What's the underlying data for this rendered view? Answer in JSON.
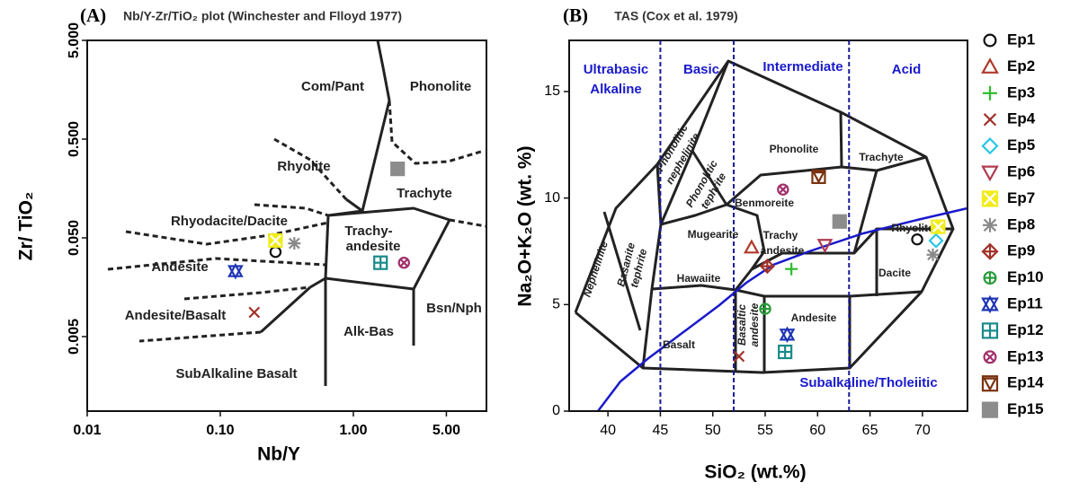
{
  "chart_data": [
    {
      "type": "scatter",
      "panel": "(A)",
      "title": "Nb/Y-Zr/TiO₂ plot (Winchester and Flloyd 1977)",
      "x_label": "Nb/Y",
      "y_label": "Zr/ TiO₂",
      "log_x": true,
      "log_y": true,
      "xlim": [
        0.01,
        10
      ],
      "ylim": [
        0.00088,
        5
      ],
      "xticks": [
        0.01,
        {
          "value": 0.1,
          "label": "0.10"
        },
        {
          "value": 1,
          "label": "1.00"
        },
        {
          "value": 5,
          "label": "5.00"
        }
      ],
      "yticks": [
        {
          "value": 0.005,
          "label": "0.005"
        },
        {
          "value": 0.05,
          "label": "0.050"
        },
        {
          "value": 0.5,
          "label": "0.500"
        },
        {
          "value": 5,
          "label": "5.000"
        }
      ],
      "annotations": [
        {
          "text": "Com/Pant"
        },
        {
          "text": "Phonolite"
        },
        {
          "text": "Rhyolite"
        },
        {
          "text": "Trachyte"
        },
        {
          "text": "Rhyodacite/Dacite"
        },
        {
          "text": "Trachy-"
        },
        {
          "text": "andesite"
        },
        {
          "text": "Andesite"
        },
        {
          "text": "Andesite/Basalt"
        },
        {
          "text": "Alk-Bas"
        },
        {
          "text": "Bsn/Nph"
        },
        {
          "text": "SubAlkaline Basalt"
        }
      ],
      "series": [
        {
          "x": [
            0.26
          ],
          "values": [
            0.036
          ]
        },
        {
          "x": [
            null
          ],
          "values": [
            null
          ]
        },
        {
          "x": [
            null
          ],
          "values": [
            null
          ]
        },
        {
          "x": [
            0.18
          ],
          "values": [
            0.0088
          ]
        },
        {
          "x": [
            null
          ],
          "values": [
            null
          ]
        },
        {
          "x": [
            null
          ],
          "values": [
            null
          ]
        },
        {
          "x": [
            0.26
          ],
          "values": [
            0.047
          ]
        },
        {
          "x": [
            0.36
          ],
          "values": [
            0.044
          ]
        },
        {
          "x": [
            null
          ],
          "values": [
            null
          ]
        },
        {
          "x": [
            null
          ],
          "values": [
            null
          ]
        },
        {
          "x": [
            0.13
          ],
          "values": [
            0.023
          ]
        },
        {
          "x": [
            1.6
          ],
          "values": [
            0.028
          ]
        },
        {
          "x": [
            2.4
          ],
          "values": [
            0.028
          ]
        },
        {
          "x": [
            null
          ],
          "values": [
            null
          ]
        },
        {
          "x": [
            2.15
          ],
          "values": [
            0.25
          ]
        }
      ]
    },
    {
      "type": "scatter",
      "panel": "(B)",
      "title": "TAS (Cox et al. 1979)",
      "x_label": "SiO₂ (wt.%)",
      "y_label": "Na₂O+K₂O (wt. %)",
      "xlim": [
        36.3,
        74.3
      ],
      "ylim": [
        0,
        17.4
      ],
      "xticks": [
        40,
        45,
        50,
        55,
        60,
        65,
        70
      ],
      "yticks": [
        0,
        5,
        10,
        15
      ],
      "vlines": [
        45,
        52,
        63
      ],
      "annotations": [
        {
          "text": "Ultrabasic",
          "color": "#1a1acc"
        },
        {
          "text": "Alkaline",
          "color": "#1a1acc"
        },
        {
          "text": "Basic",
          "color": "#1a1acc"
        },
        {
          "text": "Intermediate",
          "color": "#1a1acc"
        },
        {
          "text": "Acid",
          "color": "#1a1acc"
        },
        {
          "text": "Subalkaline/Tholeiitic",
          "color": "#1a1acc"
        },
        {
          "text": "Phonolite"
        },
        {
          "text": "Trachyte"
        },
        {
          "text": "Benmoreite"
        },
        {
          "text": "Trachy"
        },
        {
          "text": "andesite"
        },
        {
          "text": "Mugearite"
        },
        {
          "text": "Hawaiite"
        },
        {
          "text": "Rhyolite"
        },
        {
          "text": "Dacite"
        },
        {
          "text": "Andesite"
        },
        {
          "text": "Basalt"
        },
        {
          "text": "Nephelinite"
        },
        {
          "text": "Phonolitic"
        },
        {
          "text": "nephelinite"
        },
        {
          "text": "Phonolitic"
        },
        {
          "text": "tephrite"
        },
        {
          "text": "Basanite"
        },
        {
          "text": "tephrite"
        },
        {
          "text": "Basaltic"
        },
        {
          "text": "andesite"
        }
      ],
      "series": [
        {
          "name": "Ep1",
          "color": "#111111",
          "marker": "circle",
          "x": [
            69.5
          ],
          "values": [
            8.06
          ]
        },
        {
          "name": "Ep2",
          "color": "#b0392b",
          "marker": "triangle",
          "x": [
            53.7
          ],
          "values": [
            7.68
          ]
        },
        {
          "name": "Ep3",
          "color": "#2dbb2d",
          "marker": "plus",
          "x": [
            57.5
          ],
          "values": [
            6.67
          ]
        },
        {
          "name": "Ep4",
          "color": "#a0322a",
          "marker": "x",
          "x": [
            52.5
          ],
          "values": [
            2.57
          ]
        },
        {
          "name": "Ep5",
          "color": "#27c6e6",
          "marker": "diamond",
          "x": [
            71.3
          ],
          "values": [
            8.0
          ]
        },
        {
          "name": "Ep6",
          "color": "#b03a50",
          "marker": "triangle-down",
          "x": [
            60.7
          ],
          "values": [
            7.8
          ]
        },
        {
          "name": "Ep7",
          "color": "#f2ec1a",
          "marker": "square-x",
          "x": [
            71.5
          ],
          "values": [
            8.65
          ]
        },
        {
          "name": "Ep8",
          "color": "#8a8a8a",
          "marker": "asterisk",
          "x": [
            71.0
          ],
          "values": [
            7.34
          ]
        },
        {
          "name": "Ep9",
          "color": "#a0322a",
          "marker": "diamond-plus",
          "x": [
            55.2
          ],
          "values": [
            6.8
          ]
        },
        {
          "name": "Ep10",
          "color": "#2a9a3a",
          "marker": "circle-plus",
          "x": [
            55.0
          ],
          "values": [
            4.8
          ]
        },
        {
          "name": "Ep11",
          "color": "#1f35b5",
          "marker": "star",
          "x": [
            57.1
          ],
          "values": [
            3.59
          ]
        },
        {
          "name": "Ep12",
          "color": "#1a8a8a",
          "marker": "square-plus",
          "x": [
            56.9
          ],
          "values": [
            2.78
          ]
        },
        {
          "name": "Ep13",
          "color": "#a0306a",
          "marker": "circle-x",
          "x": [
            56.7
          ],
          "values": [
            10.4
          ]
        },
        {
          "name": "Ep14",
          "color": "#7a3310",
          "marker": "square-triangle",
          "x": [
            60.1
          ],
          "values": [
            11.0
          ]
        },
        {
          "name": "Ep15",
          "color": "#8c8c8c",
          "marker": "square",
          "x": [
            62.1
          ],
          "values": [
            8.9
          ]
        }
      ]
    }
  ]
}
